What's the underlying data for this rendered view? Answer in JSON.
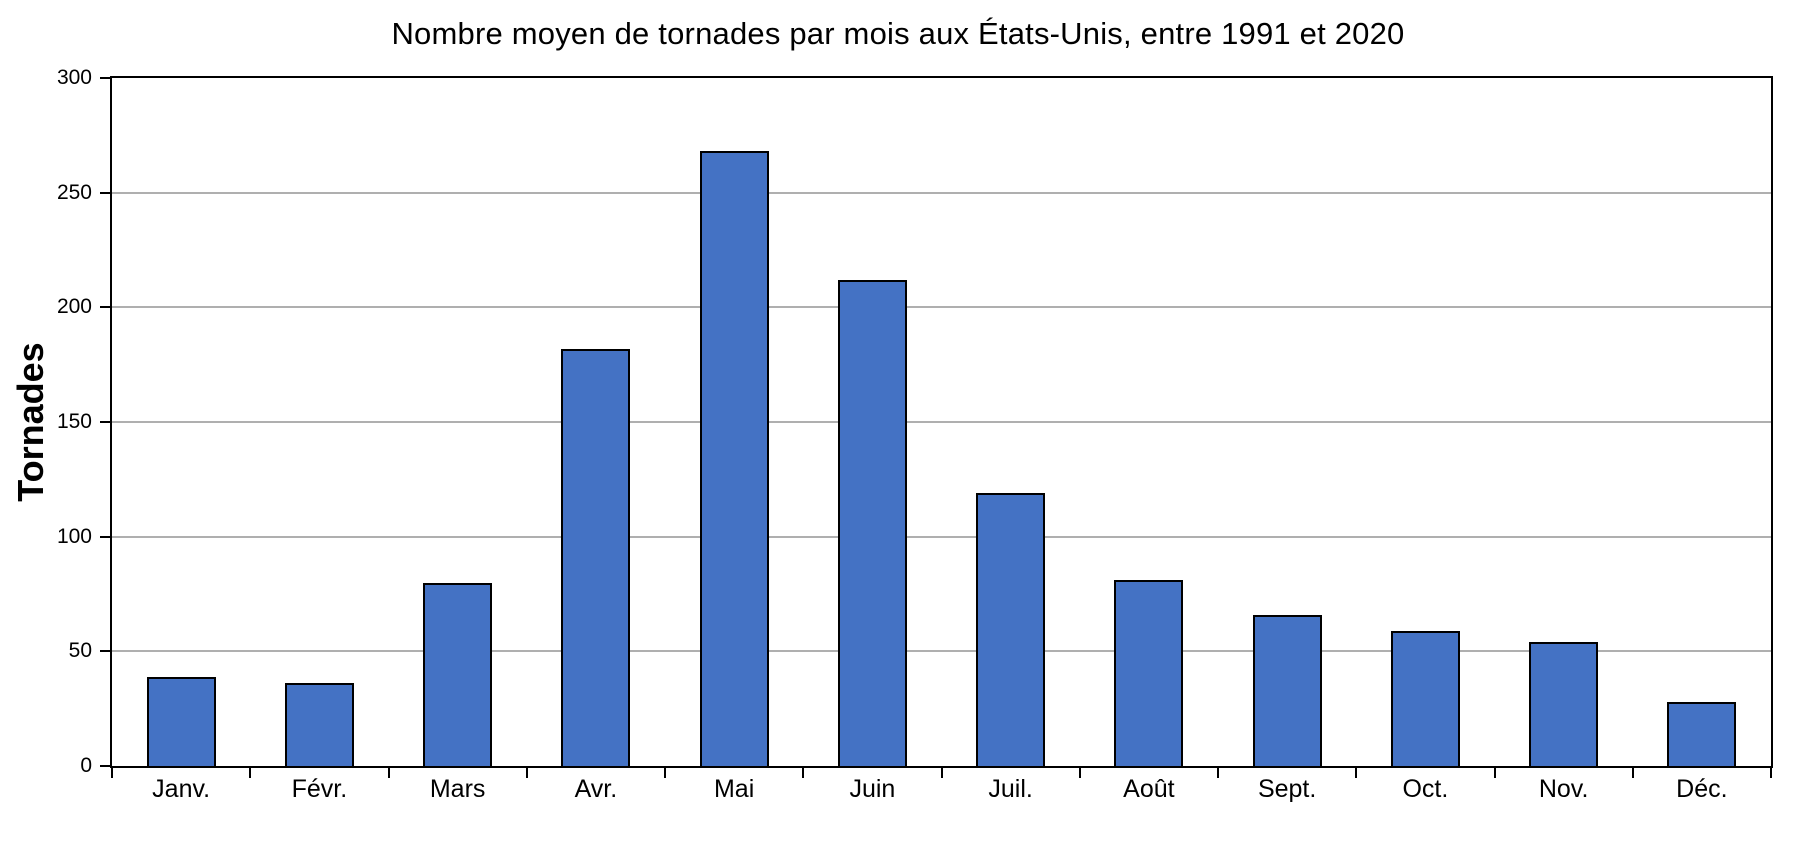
{
  "chart_data": {
    "type": "bar",
    "title": "Nombre moyen de tornades par mois aux États-Unis, entre 1991 et 2020",
    "xlabel": "",
    "ylabel": "Tornades",
    "categories": [
      "Janv.",
      "Févr.",
      "Mars",
      "Avr.",
      "Mai",
      "Juin",
      "Juil.",
      "Août",
      "Sept.",
      "Oct.",
      "Nov.",
      "Déc."
    ],
    "values": [
      39,
      36,
      80,
      182,
      268,
      212,
      119,
      81,
      66,
      59,
      54,
      28
    ],
    "ylim": [
      0,
      300
    ],
    "ytick_step": 50,
    "ytick_labels": [
      "0",
      "50",
      "100",
      "150",
      "200",
      "250",
      "300"
    ],
    "grid": "horizontal",
    "legend": "none",
    "colors": {
      "bar_fill": "#4472C4",
      "bar_border": "#000000",
      "gridline": "#AFAFAF",
      "axis": "#000000",
      "text": "#000000"
    }
  }
}
